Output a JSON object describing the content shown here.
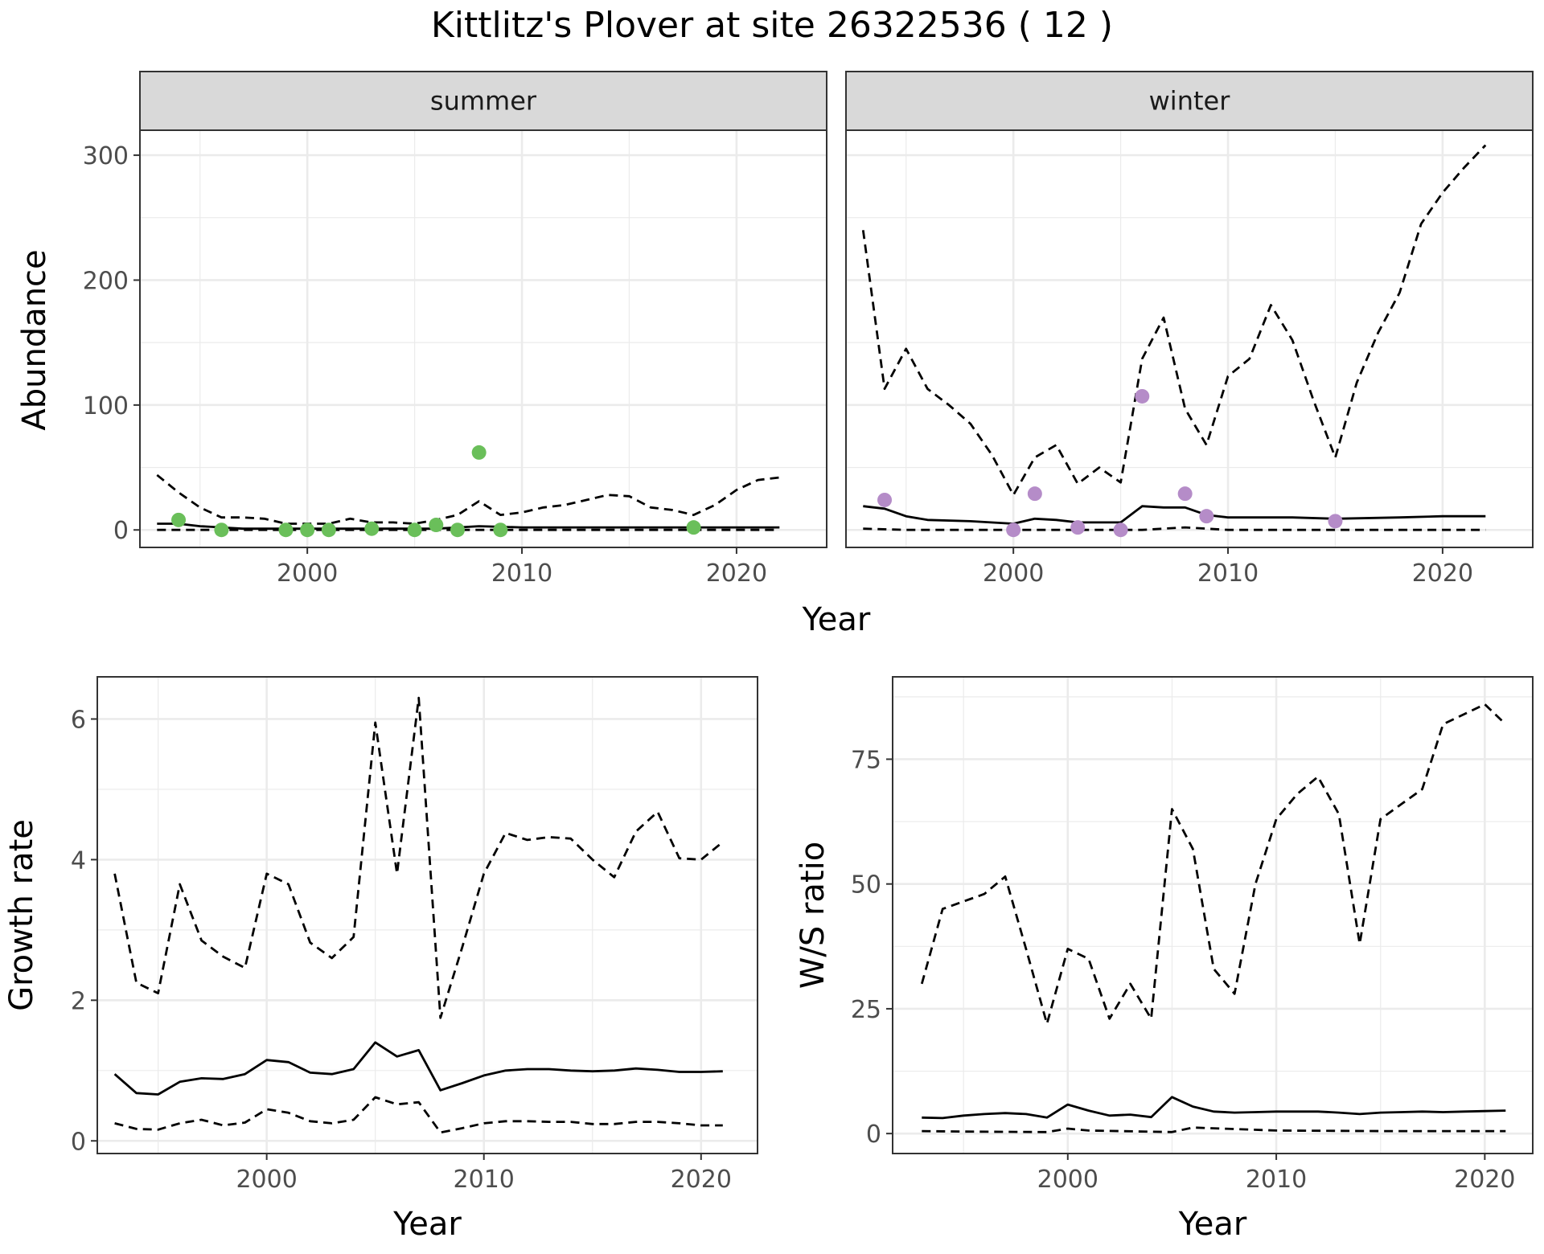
{
  "title": "Kittlitz's Plover at site 26322536 ( 12 )",
  "colors": {
    "summer_points": "#6abf5a",
    "winter_points": "#b58cc8",
    "lines": "#000000",
    "strip_fill": "#d9d9d9",
    "grid": "#ebebeb",
    "panel_border": "#333333"
  },
  "top": {
    "ylabel": "Abundance",
    "xlabel": "Year"
  },
  "chart_data": [
    {
      "type": "scatter",
      "panel": "summer",
      "strip_label": "summer",
      "ylabel": "Abundance",
      "xlabel": "Year",
      "xlim": [
        1992.2,
        2024.2
      ],
      "ylim": [
        -14,
        320
      ],
      "x_ticks": [
        2000,
        2010,
        2020
      ],
      "y_ticks": [
        0,
        100,
        200,
        300
      ],
      "grid": true,
      "points": {
        "x": [
          1994,
          1996,
          1999,
          2000,
          2001,
          2003,
          2005,
          2006,
          2007,
          2008,
          2009,
          2018
        ],
        "y": [
          8,
          0,
          0,
          0,
          0,
          1,
          0,
          4,
          0,
          62,
          0,
          2
        ]
      },
      "series": [
        {
          "style": "solid",
          "x": [
            1993,
            1994,
            1995,
            1996,
            1997,
            1998,
            2000,
            2002,
            2004,
            2006,
            2008,
            2010,
            2015,
            2020,
            2022
          ],
          "y": [
            5,
            5,
            3,
            2,
            1,
            1,
            1,
            1,
            1,
            1,
            3,
            2,
            2,
            2,
            2
          ]
        },
        {
          "style": "dashed",
          "x": [
            1993,
            1994,
            1995,
            1996,
            1997,
            1998,
            1999,
            2000,
            2001,
            2002,
            2003,
            2004,
            2005,
            2006,
            2007,
            2008,
            2009,
            2010,
            2011,
            2012,
            2013,
            2014,
            2015,
            2016,
            2017,
            2018,
            2019,
            2020,
            2021,
            2022
          ],
          "y": [
            44,
            30,
            18,
            10,
            10,
            9,
            5,
            5,
            5,
            9,
            6,
            6,
            5,
            8,
            12,
            23,
            12,
            14,
            18,
            20,
            24,
            28,
            27,
            18,
            16,
            12,
            20,
            32,
            40,
            42
          ]
        },
        {
          "style": "dashed",
          "x": [
            1993,
            2000,
            2010,
            2022
          ],
          "y": [
            0,
            0,
            0,
            0
          ]
        }
      ]
    },
    {
      "type": "scatter",
      "panel": "winter",
      "strip_label": "winter",
      "xlabel": "Year",
      "xlim": [
        1992.2,
        2024.2
      ],
      "ylim": [
        -14,
        320
      ],
      "x_ticks": [
        2000,
        2010,
        2020
      ],
      "grid": true,
      "points": {
        "x": [
          1994,
          2000,
          2001,
          2003,
          2005,
          2006,
          2008,
          2009,
          2015
        ],
        "y": [
          24,
          0,
          29,
          2,
          0,
          107,
          29,
          11,
          7
        ]
      },
      "series": [
        {
          "style": "solid",
          "x": [
            1993,
            1994,
            1995,
            1996,
            1998,
            2000,
            2001,
            2002,
            2003,
            2004,
            2005,
            2006,
            2007,
            2008,
            2009,
            2010,
            2011,
            2013,
            2015,
            2018,
            2020,
            2022
          ],
          "y": [
            19,
            17,
            11,
            8,
            7,
            5,
            9,
            8,
            6,
            6,
            6,
            19,
            18,
            18,
            12,
            10,
            10,
            10,
            9,
            10,
            11,
            11
          ]
        },
        {
          "style": "dashed",
          "x": [
            1993,
            1994,
            1995,
            1996,
            1997,
            1998,
            1999,
            2000,
            2001,
            2002,
            2003,
            2004,
            2005,
            2006,
            2007,
            2008,
            2009,
            2010,
            2011,
            2012,
            2013,
            2014,
            2015,
            2016,
            2017,
            2018,
            2019,
            2020,
            2021,
            2022
          ],
          "y": [
            240,
            113,
            145,
            113,
            100,
            85,
            60,
            28,
            58,
            68,
            37,
            50,
            38,
            137,
            170,
            97,
            68,
            123,
            137,
            180,
            152,
            103,
            58,
            118,
            158,
            190,
            245,
            270,
            290,
            308
          ]
        },
        {
          "style": "dashed",
          "x": [
            1993,
            1995,
            2000,
            2006,
            2008,
            2010,
            2015,
            2022
          ],
          "y": [
            1,
            0,
            0,
            0,
            2,
            0,
            0,
            0
          ]
        }
      ]
    },
    {
      "type": "line",
      "panel": "growth",
      "ylabel": "Growth rate",
      "xlabel": "Year",
      "xlim": [
        1992.2,
        2022.6
      ],
      "ylim": [
        -0.18,
        6.6
      ],
      "x_ticks": [
        2000,
        2010,
        2020
      ],
      "y_ticks": [
        0,
        2,
        4,
        6
      ],
      "grid": true,
      "series": [
        {
          "style": "solid",
          "x": [
            1993,
            1994,
            1995,
            1996,
            1997,
            1998,
            1999,
            2000,
            2001,
            2002,
            2003,
            2004,
            2005,
            2006,
            2007,
            2008,
            2009,
            2010,
            2011,
            2012,
            2013,
            2014,
            2015,
            2016,
            2017,
            2018,
            2019,
            2020,
            2021
          ],
          "y": [
            0.95,
            0.68,
            0.66,
            0.84,
            0.89,
            0.88,
            0.95,
            1.15,
            1.12,
            0.97,
            0.95,
            1.02,
            1.4,
            1.2,
            1.29,
            0.72,
            0.82,
            0.93,
            1.0,
            1.02,
            1.02,
            1.0,
            0.99,
            1.0,
            1.03,
            1.01,
            0.98,
            0.98,
            0.99
          ]
        },
        {
          "style": "dashed",
          "x": [
            1993,
            1994,
            1995,
            1996,
            1997,
            1998,
            1999,
            2000,
            2001,
            2002,
            2003,
            2004,
            2005,
            2006,
            2007,
            2008,
            2009,
            2010,
            2011,
            2012,
            2013,
            2014,
            2015,
            2016,
            2017,
            2018,
            2019,
            2020,
            2021
          ],
          "y": [
            3.8,
            2.25,
            2.1,
            3.65,
            2.85,
            2.62,
            2.46,
            3.8,
            3.65,
            2.82,
            2.6,
            2.9,
            5.95,
            3.8,
            6.3,
            1.75,
            2.75,
            3.8,
            4.38,
            4.28,
            4.32,
            4.3,
            4.0,
            3.75,
            4.4,
            4.68,
            4.02,
            4.0,
            4.25
          ]
        },
        {
          "style": "dashed",
          "x": [
            1993,
            1994,
            1995,
            1996,
            1997,
            1998,
            1999,
            2000,
            2001,
            2002,
            2003,
            2004,
            2005,
            2006,
            2007,
            2008,
            2009,
            2010,
            2011,
            2012,
            2013,
            2014,
            2015,
            2016,
            2017,
            2018,
            2019,
            2020,
            2021
          ],
          "y": [
            0.25,
            0.17,
            0.16,
            0.25,
            0.3,
            0.22,
            0.26,
            0.45,
            0.4,
            0.28,
            0.25,
            0.3,
            0.62,
            0.52,
            0.55,
            0.12,
            0.18,
            0.25,
            0.28,
            0.28,
            0.27,
            0.27,
            0.24,
            0.24,
            0.27,
            0.27,
            0.25,
            0.22,
            0.22
          ]
        }
      ]
    },
    {
      "type": "line",
      "panel": "ws_ratio",
      "ylabel": "W/S ratio",
      "xlabel": "Year",
      "xlim": [
        1991.6,
        2022.3
      ],
      "ylim": [
        -4,
        91.5
      ],
      "x_ticks": [
        2000,
        2010,
        2020
      ],
      "y_ticks": [
        0,
        25,
        50,
        75
      ],
      "grid": true,
      "series": [
        {
          "style": "solid",
          "x": [
            1993,
            1994,
            1995,
            1996,
            1997,
            1998,
            1999,
            2000,
            2001,
            2002,
            2003,
            2004,
            2005,
            2006,
            2007,
            2008,
            2009,
            2010,
            2011,
            2012,
            2013,
            2014,
            2015,
            2016,
            2017,
            2018,
            2019,
            2020,
            2021
          ],
          "y": [
            3.2,
            3.1,
            3.6,
            3.9,
            4.1,
            3.9,
            3.2,
            5.8,
            4.6,
            3.6,
            3.8,
            3.3,
            7.3,
            5.4,
            4.4,
            4.2,
            4.3,
            4.4,
            4.4,
            4.4,
            4.2,
            3.9,
            4.2,
            4.3,
            4.4,
            4.3,
            4.4,
            4.5,
            4.6
          ]
        },
        {
          "style": "dashed",
          "x": [
            1993,
            1994,
            1995,
            1996,
            1997,
            1998,
            1999,
            2000,
            2001,
            2002,
            2003,
            2004,
            2005,
            2006,
            2007,
            2008,
            2009,
            2010,
            2011,
            2012,
            2013,
            2014,
            2015,
            2016,
            2017,
            2018,
            2019,
            2020,
            2021
          ],
          "y": [
            30,
            45,
            46.5,
            48,
            51.5,
            37,
            22,
            37,
            35,
            23,
            30,
            23,
            65,
            57,
            33,
            28,
            50,
            63,
            68,
            71.5,
            64,
            38,
            63,
            66,
            69,
            82,
            84,
            86,
            82
          ]
        },
        {
          "style": "dashed",
          "x": [
            1993,
            1995,
            1999,
            2000,
            2001,
            2005,
            2006,
            2010,
            2015,
            2021
          ],
          "y": [
            0.5,
            0.4,
            0.3,
            1.0,
            0.6,
            0.3,
            1.2,
            0.6,
            0.5,
            0.5
          ]
        }
      ]
    }
  ]
}
